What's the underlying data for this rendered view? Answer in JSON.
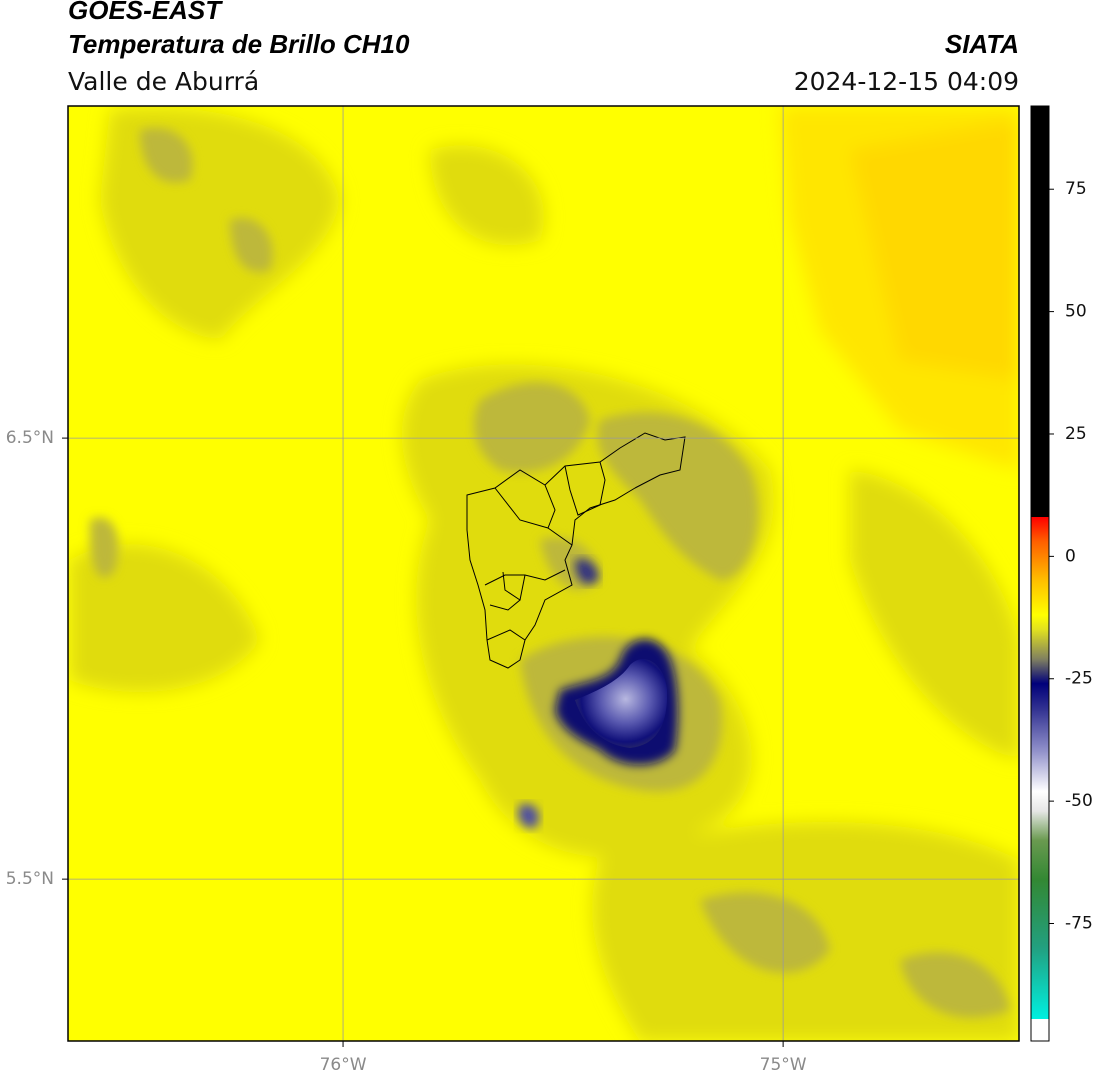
{
  "header": {
    "title": "GOES-EAST",
    "subtitle": "Temperatura de Brillo CH10",
    "region": "Valle de Aburrá",
    "source": "SIATA",
    "timestamp": "2024-12-15 04:09"
  },
  "map": {
    "lon_range": [
      -76.625,
      -74.464
    ],
    "lat_range": [
      5.133,
      7.253
    ],
    "grid": true,
    "lon_ticks": [
      {
        "value": -76,
        "label": "76°W"
      },
      {
        "value": -75,
        "label": "75°W"
      }
    ],
    "lat_ticks": [
      {
        "value": 6.5,
        "label": "6.5°N"
      },
      {
        "value": 5.5,
        "label": "5.5°N"
      }
    ]
  },
  "colorbar": {
    "range": [
      -99,
      92
    ],
    "ticks": [
      75,
      50,
      25,
      0,
      -25,
      -50,
      -75
    ],
    "stops": [
      {
        "value": -99,
        "color": "#ffffff"
      },
      {
        "value": -94.5,
        "color": "#ffffff"
      },
      {
        "value": -94.5,
        "color": "#00f0e0"
      },
      {
        "value": -80,
        "color": "#22a080"
      },
      {
        "value": -66,
        "color": "#338833"
      },
      {
        "value": -58,
        "color": "#6a9a50"
      },
      {
        "value": -52,
        "color": "#e6e6e6"
      },
      {
        "value": -48,
        "color": "#ffffff"
      },
      {
        "value": -40,
        "color": "#9494cc"
      },
      {
        "value": -31,
        "color": "#303090"
      },
      {
        "value": -26,
        "color": "#00007a"
      },
      {
        "value": -21,
        "color": "#808060"
      },
      {
        "value": -15,
        "color": "#e0e020"
      },
      {
        "value": -12,
        "color": "#ffff00"
      },
      {
        "value": -5,
        "color": "#ffc000"
      },
      {
        "value": 3,
        "color": "#ff6000"
      },
      {
        "value": 8,
        "color": "#ff0000"
      },
      {
        "value": 8,
        "color": "#000000"
      },
      {
        "value": 92,
        "color": "#000000"
      }
    ]
  }
}
